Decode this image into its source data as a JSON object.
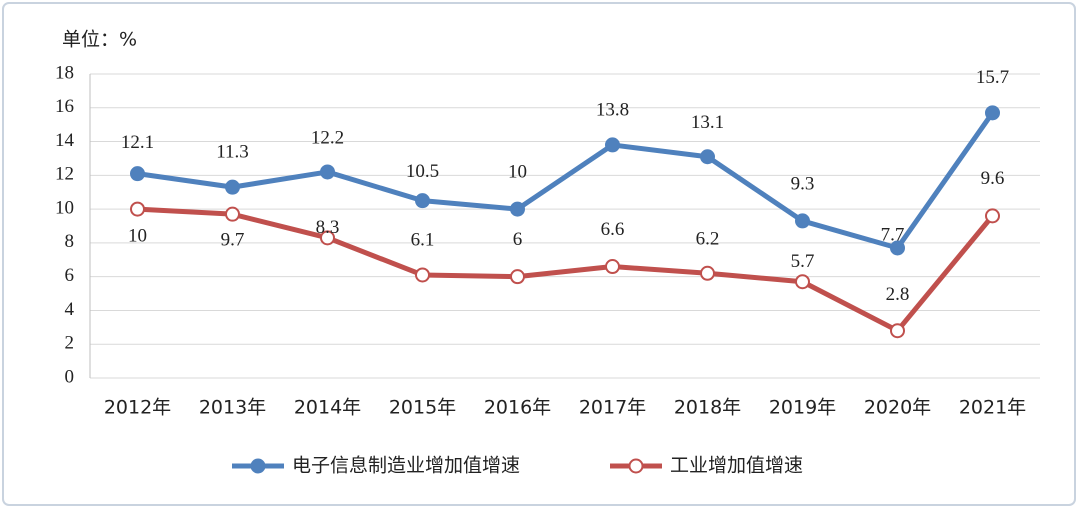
{
  "chart_data": {
    "type": "line",
    "unit_label": "单位：%",
    "categories": [
      "2012年",
      "2013年",
      "2014年",
      "2015年",
      "2016年",
      "2017年",
      "2018年",
      "2019年",
      "2020年",
      "2021年"
    ],
    "series": [
      {
        "name": "电子信息制造业增加值增速",
        "color": "#4f81bd",
        "marker": "filled",
        "values": [
          12.1,
          11.3,
          12.2,
          10.5,
          10,
          13.8,
          13.1,
          9.3,
          7.7,
          15.7
        ]
      },
      {
        "name": "工业增加值增速",
        "color": "#c0504d",
        "marker": "hollow",
        "values": [
          10,
          9.7,
          8.3,
          6.1,
          6,
          6.6,
          6.2,
          5.7,
          2.8,
          9.6
        ]
      }
    ],
    "ylim": [
      0,
      18
    ],
    "yticks": [
      0,
      2,
      4,
      6,
      8,
      10,
      12,
      14,
      16,
      18
    ],
    "grid": true,
    "legend": "bottom"
  }
}
